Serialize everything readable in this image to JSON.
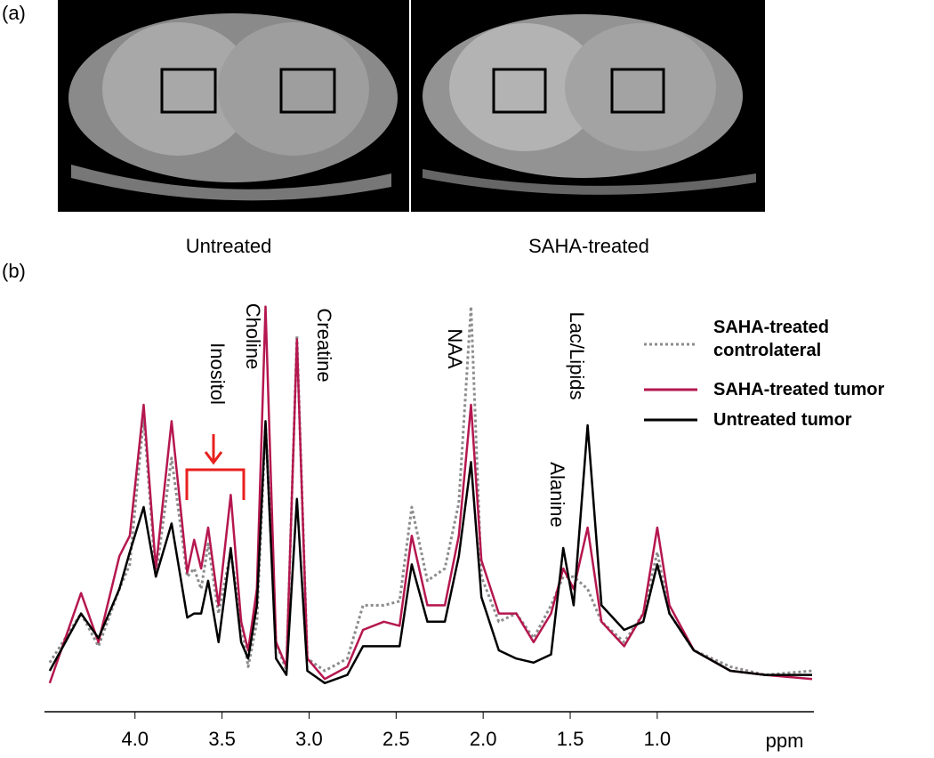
{
  "chart_data": {
    "type": "line",
    "panel_labels": [
      "(a)",
      "(b)"
    ],
    "image_captions": [
      "Untreated",
      "SAHA-treated"
    ],
    "xlabel": "ppm",
    "annotations": [
      "Choline",
      "Creatine",
      "NAA",
      "Lac/Lipids",
      "Alanine",
      "Inositol"
    ],
    "xlim": [
      4.52,
      0.1
    ],
    "ylim": [
      0,
      100
    ],
    "xticks": [
      {
        "value": 4,
        "label": "4.0"
      },
      3.5,
      {
        "value": 3,
        "label": "3.0"
      },
      2.5,
      {
        "value": 2,
        "label": "2.0"
      },
      1.5,
      {
        "value": 1,
        "label": "1.0"
      }
    ],
    "x": [
      4.49,
      4.31,
      4.21,
      4.09,
      4.03,
      3.95,
      3.88,
      3.79,
      3.7,
      3.66,
      3.62,
      3.58,
      3.52,
      3.45,
      3.39,
      3.35,
      3.3,
      3.25,
      3.19,
      3.13,
      3.07,
      3.01,
      2.91,
      2.78,
      2.69,
      2.57,
      2.48,
      2.41,
      2.32,
      2.22,
      2.14,
      2.07,
      2.01,
      1.91,
      1.81,
      1.71,
      1.61,
      1.54,
      1.48,
      1.4,
      1.32,
      1.19,
      1.08,
      1.0,
      0.93,
      0.79,
      0.58,
      0.38,
      0.11
    ],
    "series": [
      {
        "name": "SAHA-treated controlateral",
        "color": "#8c8c8c",
        "dash": true,
        "values": [
          12,
          24,
          16,
          30,
          36,
          72,
          33,
          62,
          33,
          35,
          30,
          41,
          24,
          39,
          22,
          11,
          22,
          70,
          17,
          10,
          92,
          13,
          10,
          13,
          26,
          26,
          27,
          50,
          32,
          35,
          51,
          99,
          33,
          22,
          24,
          18,
          26,
          33,
          33,
          30,
          22,
          17,
          24,
          39,
          24,
          15,
          11,
          9,
          10
        ]
      },
      {
        "name": "SAHA-treated tumor",
        "color": "#b5174f",
        "dash": false,
        "values": [
          7,
          29,
          17,
          38,
          43,
          75,
          35,
          71,
          34,
          42,
          35,
          45,
          26,
          53,
          22,
          15,
          30,
          99,
          17,
          11,
          91,
          13,
          8,
          11,
          20,
          22,
          21,
          43,
          26,
          26,
          43,
          75,
          37,
          24,
          24,
          17,
          24,
          35,
          30,
          45,
          22,
          16,
          24,
          45,
          26,
          15,
          10,
          9,
          8
        ]
      },
      {
        "name": "Untreated tumor",
        "color": "#000000",
        "dash": false,
        "values": [
          10,
          24,
          18,
          30,
          39,
          50,
          33,
          46,
          23,
          24,
          24,
          32,
          17,
          40,
          17,
          13,
          26,
          71,
          13,
          9,
          52,
          10,
          7,
          9,
          16,
          16,
          16,
          36,
          22,
          22,
          38,
          61,
          28,
          15,
          13,
          12,
          14,
          40,
          26,
          70,
          26,
          20,
          22,
          36,
          24,
          15,
          10,
          9,
          9
        ]
      }
    ]
  }
}
